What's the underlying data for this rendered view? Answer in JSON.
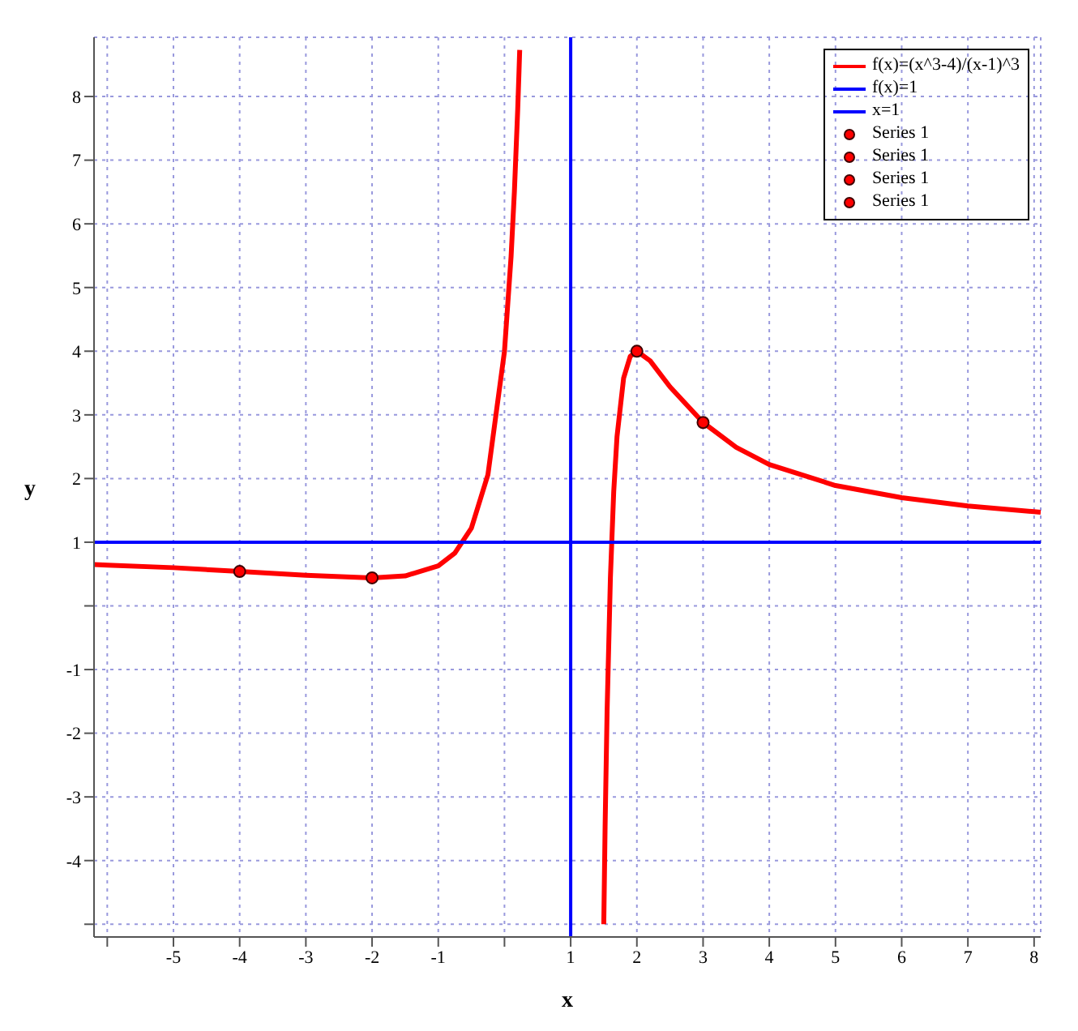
{
  "chart_data": {
    "type": "line",
    "xlabel": "x",
    "ylabel": "y",
    "xlim": [
      -6.2,
      8.1
    ],
    "ylim": [
      -5.2,
      8.93
    ],
    "xticks": [
      {
        "value": -6,
        "label": null
      },
      -5,
      -4,
      -3,
      -2,
      -1,
      {
        "value": 0,
        "label": null
      },
      1,
      2,
      3,
      4,
      5,
      6,
      7,
      8
    ],
    "yticks": [
      {
        "value": -5,
        "label": null
      },
      -4,
      -3,
      -2,
      -1,
      {
        "value": 0,
        "label": null
      },
      1,
      2,
      3,
      4,
      5,
      6,
      7,
      8
    ],
    "grid": true,
    "legend": "top right",
    "series": [
      {
        "name": "f(x)=(x^3-4)/(x-1)^3",
        "color": "#ff0000",
        "x": [
          -6.2,
          -6,
          -5,
          -4,
          -3,
          -2,
          -1.5,
          -1,
          -0.75,
          -0.5,
          -0.25,
          0,
          0.1,
          0.15,
          0.2,
          0.22,
          0.23,
          1,
          1.5,
          1.52,
          1.55,
          1.6,
          1.65,
          1.7,
          1.8,
          1.9,
          2,
          2.2,
          2.5,
          3,
          3.5,
          4,
          5,
          6,
          7,
          8,
          8.1
        ],
        "values": [
          0.65,
          0.64,
          0.6,
          0.54,
          0.48,
          0.44,
          0.47,
          0.63,
          0.83,
          1.22,
          2.06,
          4,
          5.49,
          6.51,
          7.8,
          8.41,
          8.73,
          null,
          -5,
          -3.47,
          -1.66,
          0.44,
          1.79,
          2.66,
          3.58,
          3.92,
          4,
          3.85,
          3.44,
          2.88,
          2.49,
          2.22,
          1.89,
          1.7,
          1.57,
          1.48,
          1.47
        ]
      },
      {
        "name": "f(x)=1",
        "color": "#0000ff",
        "x": [
          -6.2,
          8.1
        ],
        "values": [
          1,
          1
        ]
      },
      {
        "name": "x=1",
        "color": "#0000ff",
        "x": [
          1,
          1
        ],
        "values": [
          -5.2,
          8.93
        ]
      },
      {
        "name": "Series 1",
        "color": "#ff0000",
        "type": "scatter",
        "marker": "circle",
        "x": [
          -4
        ],
        "values": [
          0.54
        ]
      },
      {
        "name": "Series 1",
        "color": "#ff0000",
        "type": "scatter",
        "marker": "circle",
        "x": [
          -2
        ],
        "values": [
          0.44
        ]
      },
      {
        "name": "Series 1",
        "color": "#ff0000",
        "type": "scatter",
        "marker": "circle",
        "x": [
          2
        ],
        "values": [
          4
        ]
      },
      {
        "name": "Series 1",
        "color": "#ff0000",
        "type": "scatter",
        "marker": "circle",
        "x": [
          3
        ],
        "values": [
          2.88
        ]
      }
    ]
  }
}
